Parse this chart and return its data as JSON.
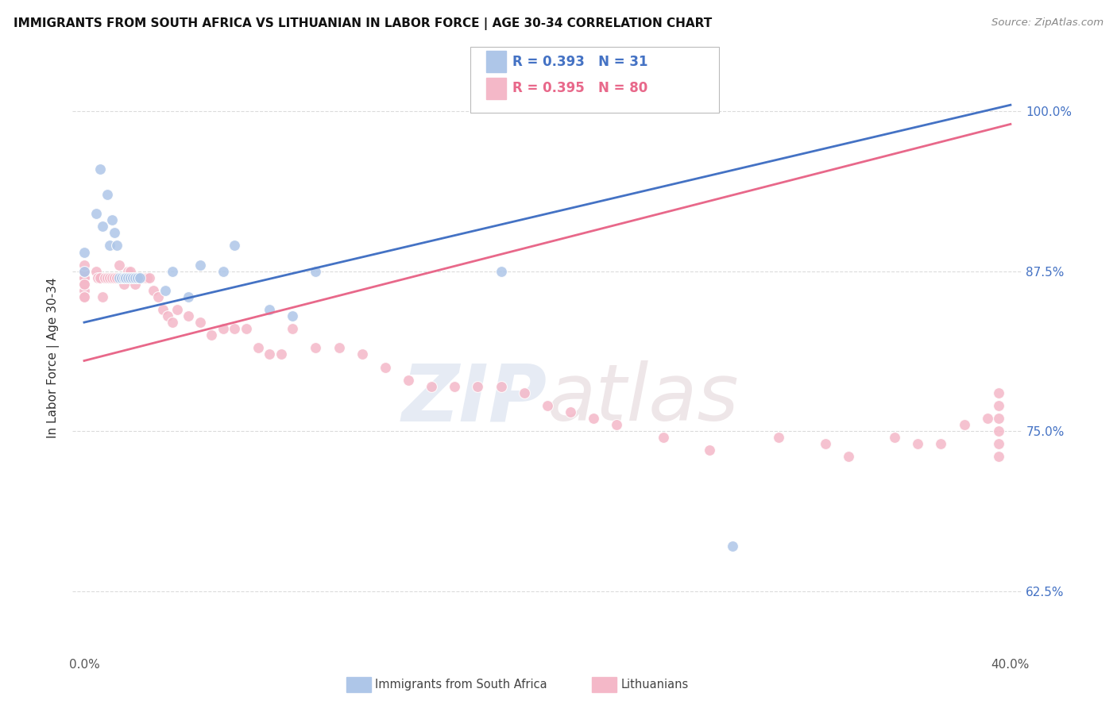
{
  "title": "IMMIGRANTS FROM SOUTH AFRICA VS LITHUANIAN IN LABOR FORCE | AGE 30-34 CORRELATION CHART",
  "source": "Source: ZipAtlas.com",
  "ylabel": "In Labor Force | Age 30-34",
  "xlim": [
    -0.005,
    0.405
  ],
  "ylim": [
    0.575,
    1.04
  ],
  "blue_R": 0.393,
  "blue_N": 31,
  "pink_R": 0.395,
  "pink_N": 80,
  "blue_color": "#aec6e8",
  "pink_color": "#f4b8c8",
  "blue_line_color": "#4472c4",
  "pink_line_color": "#e8688a",
  "legend_label_blue": "Immigrants from South Africa",
  "legend_label_pink": "Lithuanians",
  "ytick_color": "#4472c4",
  "background_color": "#ffffff",
  "grid_color": "#cccccc",
  "blue_x": [
    0.0,
    0.0,
    0.005,
    0.007,
    0.008,
    0.01,
    0.011,
    0.012,
    0.013,
    0.014,
    0.015,
    0.016,
    0.017,
    0.018,
    0.019,
    0.02,
    0.021,
    0.022,
    0.023,
    0.024,
    0.035,
    0.038,
    0.045,
    0.05,
    0.06,
    0.065,
    0.08,
    0.09,
    0.1,
    0.18,
    0.28
  ],
  "blue_y": [
    0.89,
    0.875,
    0.92,
    0.955,
    0.91,
    0.935,
    0.895,
    0.915,
    0.905,
    0.895,
    0.87,
    0.87,
    0.87,
    0.87,
    0.87,
    0.87,
    0.87,
    0.87,
    0.87,
    0.87,
    0.86,
    0.875,
    0.855,
    0.88,
    0.875,
    0.895,
    0.845,
    0.84,
    0.875,
    0.875,
    0.66
  ],
  "pink_x": [
    0.0,
    0.0,
    0.0,
    0.0,
    0.0,
    0.0,
    0.0,
    0.0,
    0.0,
    0.0,
    0.005,
    0.006,
    0.007,
    0.008,
    0.009,
    0.01,
    0.011,
    0.012,
    0.013,
    0.014,
    0.015,
    0.016,
    0.017,
    0.018,
    0.019,
    0.02,
    0.021,
    0.022,
    0.023,
    0.024,
    0.025,
    0.026,
    0.027,
    0.028,
    0.03,
    0.032,
    0.034,
    0.036,
    0.038,
    0.04,
    0.045,
    0.05,
    0.055,
    0.06,
    0.065,
    0.07,
    0.075,
    0.08,
    0.085,
    0.09,
    0.1,
    0.11,
    0.12,
    0.13,
    0.14,
    0.15,
    0.16,
    0.17,
    0.18,
    0.19,
    0.2,
    0.21,
    0.22,
    0.23,
    0.25,
    0.27,
    0.3,
    0.32,
    0.33,
    0.35,
    0.36,
    0.37,
    0.38,
    0.39,
    0.395,
    0.395,
    0.395,
    0.395,
    0.395,
    0.395
  ],
  "pink_y": [
    0.875,
    0.87,
    0.86,
    0.855,
    0.87,
    0.865,
    0.875,
    0.88,
    0.865,
    0.855,
    0.875,
    0.87,
    0.87,
    0.855,
    0.87,
    0.87,
    0.87,
    0.87,
    0.87,
    0.87,
    0.88,
    0.87,
    0.865,
    0.87,
    0.875,
    0.875,
    0.87,
    0.865,
    0.87,
    0.87,
    0.87,
    0.87,
    0.87,
    0.87,
    0.86,
    0.855,
    0.845,
    0.84,
    0.835,
    0.845,
    0.84,
    0.835,
    0.825,
    0.83,
    0.83,
    0.83,
    0.815,
    0.81,
    0.81,
    0.83,
    0.815,
    0.815,
    0.81,
    0.8,
    0.79,
    0.785,
    0.785,
    0.785,
    0.785,
    0.78,
    0.77,
    0.765,
    0.76,
    0.755,
    0.745,
    0.735,
    0.745,
    0.74,
    0.73,
    0.745,
    0.74,
    0.74,
    0.755,
    0.76,
    0.78,
    0.77,
    0.76,
    0.75,
    0.74,
    0.73
  ],
  "blue_line_x0": 0.0,
  "blue_line_y0": 0.835,
  "blue_line_x1": 0.4,
  "blue_line_y1": 1.005,
  "pink_line_x0": 0.0,
  "pink_line_y0": 0.805,
  "pink_line_x1": 0.4,
  "pink_line_y1": 0.99
}
